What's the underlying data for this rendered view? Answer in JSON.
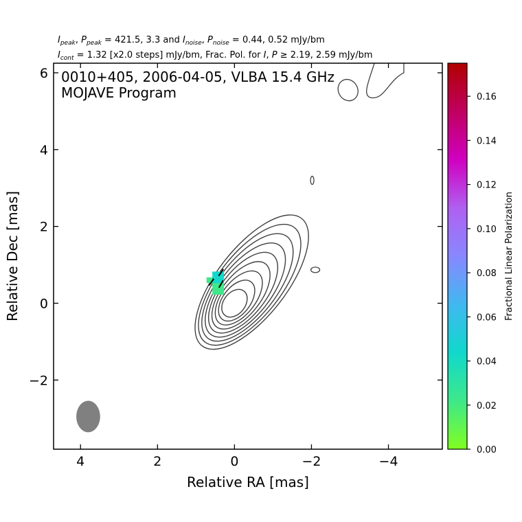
{
  "header": {
    "line1": {
      "a": "I",
      "a_sub": "peak",
      "b": ", ",
      "c": "P",
      "c_sub": "peak",
      "d": " = 421.5, 3.3 and ",
      "e": "I",
      "e_sub": "noise",
      "f": ", ",
      "g": "P",
      "g_sub": "noise",
      "h": " = 0.44, 0.52 mJy/bm"
    },
    "line2": {
      "a": "I",
      "a_sub": "cont",
      "b": " = 1.32 [x2.0 steps] mJy/bm, Frac. Pol. for ",
      "c": "I",
      "d": ", ",
      "e": "P",
      "f": " ≥ 2.19, 2.59 mJy/bm"
    }
  },
  "chart_data": {
    "type": "contour",
    "annotation_lines": [
      "0010+405, 2006-04-05, VLBA 15.4 GHz",
      "MOJAVE Program"
    ],
    "xlabel": "Relative RA [mas]",
    "ylabel": "Relative Dec [mas]",
    "xlim": [
      4.7,
      -5.4
    ],
    "ylim": [
      -3.8,
      6.25
    ],
    "xticks": [
      4,
      2,
      0,
      -2,
      -4
    ],
    "xtick_labels": [
      "4",
      "2",
      "0",
      "−2",
      "−4"
    ],
    "yticks": [
      -2,
      0,
      2,
      4,
      6
    ],
    "ytick_labels": [
      "−2",
      "0",
      "2",
      "4",
      "6"
    ],
    "contour_color": "#404040",
    "contour_levels_mJy": [
      1.32,
      2.64,
      5.28,
      10.56,
      21.12,
      42.24,
      84.48,
      168.96,
      337.92
    ],
    "core": {
      "ra": 0.0,
      "dec": 0.0,
      "peak_mJy": 421.5
    },
    "beam": {
      "ra": 3.8,
      "dec": -2.95,
      "major_mas": 0.82,
      "minor_mas": 0.62,
      "color": "#808080"
    },
    "frac_pol_pixels": [
      {
        "ra": 0.35,
        "dec": 0.75,
        "value": 0.04
      },
      {
        "ra": 0.5,
        "dec": 0.75,
        "value": 0.045
      },
      {
        "ra": 0.35,
        "dec": 0.6,
        "value": 0.035
      },
      {
        "ra": 0.5,
        "dec": 0.6,
        "value": 0.04
      },
      {
        "ra": 0.65,
        "dec": 0.6,
        "value": 0.03
      },
      {
        "ra": 0.35,
        "dec": 0.45,
        "value": 0.02
      },
      {
        "ra": 0.5,
        "dec": 0.45,
        "value": 0.025
      },
      {
        "ra": 0.35,
        "dec": 0.3,
        "value": 0.025
      },
      {
        "ra": 0.5,
        "dec": 0.3,
        "value": 0.03
      }
    ],
    "evpa_ticks": [
      {
        "ra": 0.35,
        "dec": 0.8,
        "angle_deg": 55
      },
      {
        "ra": 0.35,
        "dec": 0.5,
        "angle_deg": 60
      },
      {
        "ra": 0.6,
        "dec": 0.55,
        "angle_deg": 55
      }
    ],
    "colorbar": {
      "label": "Fractional Linear Polarization",
      "range": [
        0.0,
        0.175
      ],
      "ticks": [
        0.0,
        0.02,
        0.04,
        0.06,
        0.08,
        0.1,
        0.12,
        0.14,
        0.16
      ],
      "tick_labels": [
        "0.00",
        "0.02",
        "0.04",
        "0.06",
        "0.08",
        "0.10",
        "0.12",
        "0.14",
        "0.16"
      ],
      "colors": [
        "#80ff20",
        "#3ee88a",
        "#10d8cc",
        "#40b8f0",
        "#8888ff",
        "#b060f0",
        "#d000c0",
        "#c00060",
        "#b00000"
      ]
    }
  }
}
